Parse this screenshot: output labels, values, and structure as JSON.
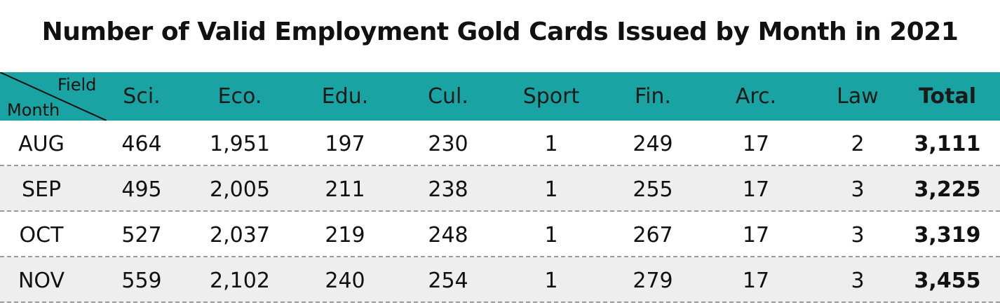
{
  "chart_data": {
    "type": "table",
    "title": "Number of Valid Employment Gold Cards Issued by Month in 2021",
    "corner": {
      "column_label": "Field",
      "row_label": "Month"
    },
    "columns": [
      "Sci.",
      "Eco.",
      "Edu.",
      "Cul.",
      "Sport",
      "Fin.",
      "Arc.",
      "Law",
      "Total"
    ],
    "rows": [
      {
        "month": "AUG",
        "values": [
          "464",
          "1,951",
          "197",
          "230",
          "1",
          "249",
          "17",
          "2",
          "3,111"
        ]
      },
      {
        "month": "SEP",
        "values": [
          "495",
          "2,005",
          "211",
          "238",
          "1",
          "255",
          "17",
          "3",
          "3,225"
        ]
      },
      {
        "month": "OCT",
        "values": [
          "527",
          "2,037",
          "219",
          "248",
          "1",
          "267",
          "17",
          "3",
          "3,319"
        ]
      },
      {
        "month": "NOV",
        "values": [
          "559",
          "2,102",
          "240",
          "254",
          "1",
          "279",
          "17",
          "3",
          "3,455"
        ]
      }
    ]
  },
  "colors": {
    "header_background": "#1aa3a3",
    "shaded_row": "#eeeeee",
    "row_divider": "#9a9a9a"
  }
}
